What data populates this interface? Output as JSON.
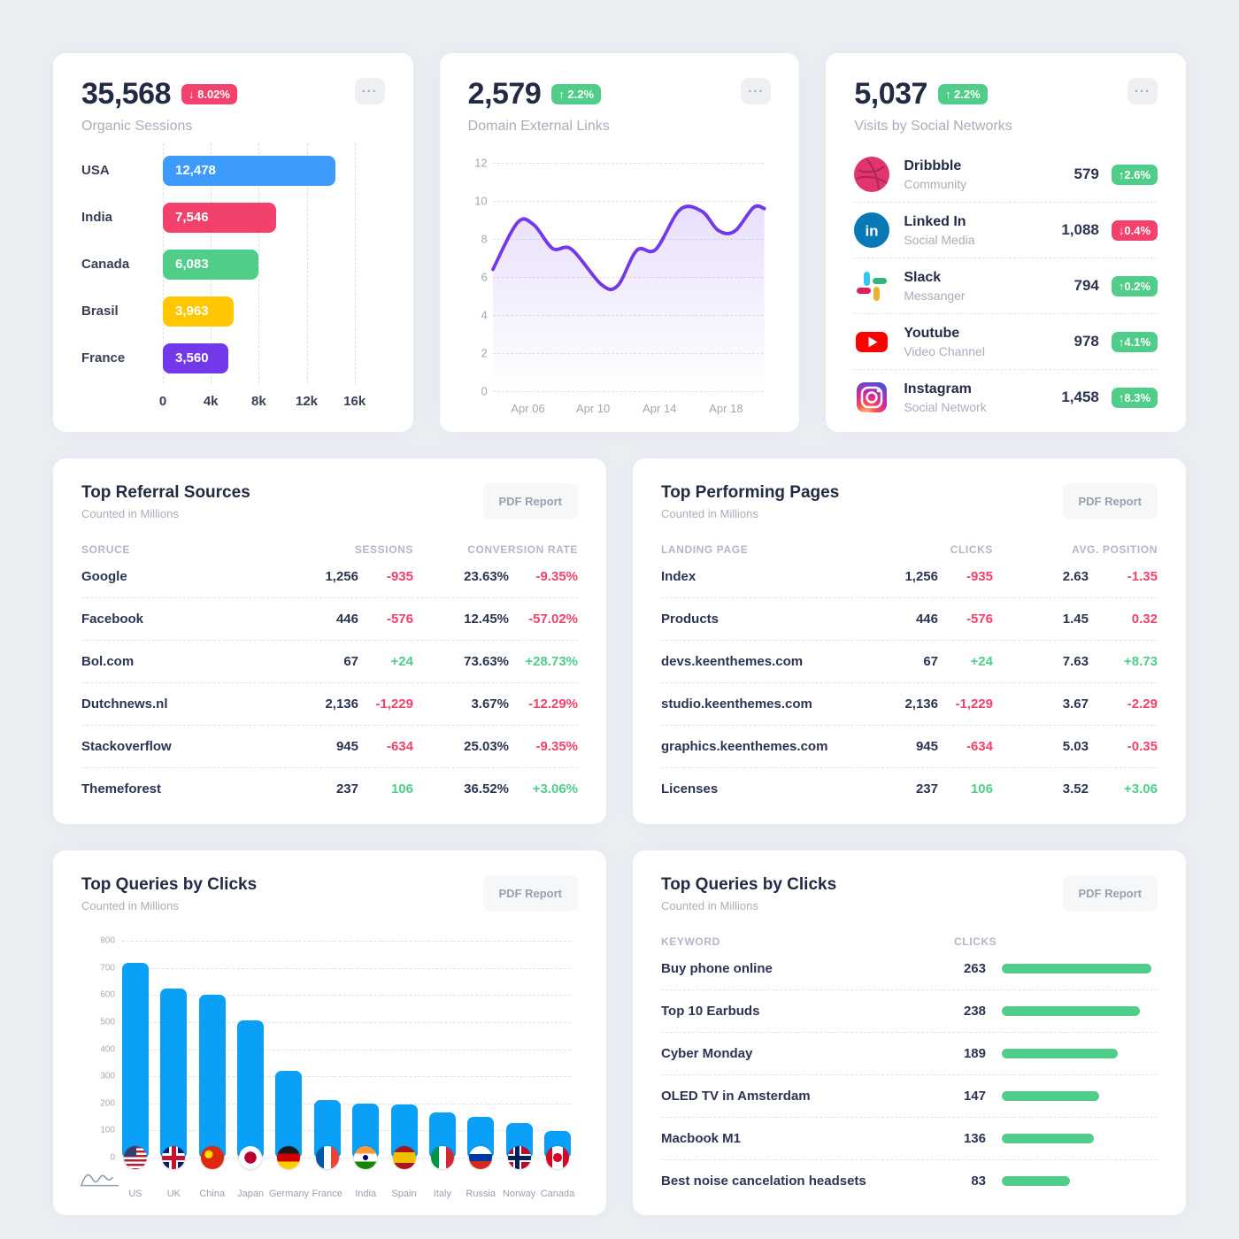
{
  "page": {
    "background": "#ebeef3",
    "card_background": "#ffffff"
  },
  "colors": {
    "danger": "#f1416c",
    "success": "#50cd89",
    "chart_blue": "#0ba0f8",
    "purple": "#7239ea"
  },
  "cards": {
    "organic_sessions": {
      "value": "35,568",
      "badge": {
        "arrow": "↓",
        "text": "8.02%",
        "tone": "danger"
      },
      "subtitle": "Organic Sessions",
      "chart_data": {
        "type": "bar",
        "orientation": "horizontal",
        "categories": [
          "USA",
          "India",
          "Canada",
          "Brasil",
          "France"
        ],
        "values": [
          12478,
          7546,
          6083,
          3963,
          3560
        ],
        "value_labels": [
          "12,478",
          "7,546",
          "6,083",
          "3,963",
          "3,560"
        ],
        "bar_colors": [
          "#3d9bfc",
          "#f1416c",
          "#50cd89",
          "#ffc700",
          "#7239ea"
        ],
        "x_ticks": [
          "0",
          "4k",
          "8k",
          "12k",
          "16k"
        ],
        "xlim": [
          0,
          16000
        ],
        "grid": true
      }
    },
    "domain_external_links": {
      "value": "2,579",
      "badge": {
        "arrow": "↑",
        "text": "2.2%",
        "tone": "success"
      },
      "subtitle": "Domain External Links",
      "chart_data": {
        "type": "area",
        "line_color": "#7239ea",
        "ylim": [
          0,
          12
        ],
        "y_ticks": [
          "12",
          "10",
          "8",
          "6",
          "4",
          "2",
          "0"
        ],
        "x_ticks": [
          {
            "label": "Apr 06",
            "pos": 13
          },
          {
            "label": "Apr 10",
            "pos": 37
          },
          {
            "label": "Apr 14",
            "pos": 61.5
          },
          {
            "label": "Apr 18",
            "pos": 86
          }
        ],
        "points": [
          [
            0,
            6.4
          ],
          [
            9,
            8.85
          ],
          [
            15,
            8.75
          ],
          [
            22,
            7.5
          ],
          [
            29,
            7.45
          ],
          [
            40,
            5.6
          ],
          [
            46,
            5.55
          ],
          [
            53,
            7.4
          ],
          [
            60,
            7.45
          ],
          [
            69,
            9.55
          ],
          [
            77,
            9.45
          ],
          [
            83,
            8.45
          ],
          [
            89,
            8.4
          ],
          [
            96,
            9.65
          ],
          [
            100,
            9.6
          ]
        ],
        "grid": true
      }
    },
    "social_visits": {
      "value": "5,037",
      "badge": {
        "arrow": "↑",
        "text": "2.2%",
        "tone": "success"
      },
      "subtitle": "Visits by Social Networks",
      "rows": [
        {
          "icon": "dribbble",
          "name": "Dribbble",
          "desc": "Community",
          "value": "579",
          "delta": {
            "arrow": "↑",
            "text": "2.6%",
            "tone": "success"
          }
        },
        {
          "icon": "linkedin",
          "name": "Linked In",
          "desc": "Social Media",
          "value": "1,088",
          "delta": {
            "arrow": "↓",
            "text": "0.4%",
            "tone": "danger"
          }
        },
        {
          "icon": "slack",
          "name": "Slack",
          "desc": "Messanger",
          "value": "794",
          "delta": {
            "arrow": "↑",
            "text": "0.2%",
            "tone": "success"
          }
        },
        {
          "icon": "youtube",
          "name": "Youtube",
          "desc": "Video Channel",
          "value": "978",
          "delta": {
            "arrow": "↑",
            "text": "4.1%",
            "tone": "success"
          }
        },
        {
          "icon": "instagram",
          "name": "Instagram",
          "desc": "Social Network",
          "value": "1,458",
          "delta": {
            "arrow": "↑",
            "text": "8.3%",
            "tone": "success"
          }
        }
      ]
    },
    "top_referral_sources": {
      "title": "Top Referral Sources",
      "subtitle": "Counted in Millions",
      "action": "PDF Report",
      "columns": [
        "SORUCE",
        "SESSIONS",
        "CONVERSION RATE"
      ],
      "rows": [
        {
          "label": "Google",
          "v1": "1,256",
          "d1": "-935",
          "d1_tone": "danger",
          "v2": "23.63%",
          "d2": "-9.35%",
          "d2_tone": "danger"
        },
        {
          "label": "Facebook",
          "v1": "446",
          "d1": "-576",
          "d1_tone": "danger",
          "v2": "12.45%",
          "d2": "-57.02%",
          "d2_tone": "danger"
        },
        {
          "label": "Bol.com",
          "v1": "67",
          "d1": "+24",
          "d1_tone": "success",
          "v2": "73.63%",
          "d2": "+28.73%",
          "d2_tone": "success"
        },
        {
          "label": "Dutchnews.nl",
          "v1": "2,136",
          "d1": "-1,229",
          "d1_tone": "danger",
          "v2": "3.67%",
          "d2": "-12.29%",
          "d2_tone": "danger"
        },
        {
          "label": "Stackoverflow",
          "v1": "945",
          "d1": "-634",
          "d1_tone": "danger",
          "v2": "25.03%",
          "d2": "-9.35%",
          "d2_tone": "danger"
        },
        {
          "label": "Themeforest",
          "v1": "237",
          "d1": "106",
          "d1_tone": "success",
          "v2": "36.52%",
          "d2": "+3.06%",
          "d2_tone": "success"
        }
      ]
    },
    "top_performing_pages": {
      "title": "Top Performing Pages",
      "subtitle": "Counted in Millions",
      "action": "PDF Report",
      "columns": [
        "LANDING PAGE",
        "CLICKS",
        "AVG. POSITION"
      ],
      "rows": [
        {
          "label": "Index",
          "v1": "1,256",
          "d1": "-935",
          "d1_tone": "danger",
          "v2": "2.63",
          "d2": "-1.35",
          "d2_tone": "danger"
        },
        {
          "label": "Products",
          "v1": "446",
          "d1": "-576",
          "d1_tone": "danger",
          "v2": "1.45",
          "d2": "0.32",
          "d2_tone": "danger"
        },
        {
          "label": "devs.keenthemes.com",
          "v1": "67",
          "d1": "+24",
          "d1_tone": "success",
          "v2": "7.63",
          "d2": "+8.73",
          "d2_tone": "success"
        },
        {
          "label": "studio.keenthemes.com",
          "v1": "2,136",
          "d1": "-1,229",
          "d1_tone": "danger",
          "v2": "3.67",
          "d2": "-2.29",
          "d2_tone": "danger"
        },
        {
          "label": "graphics.keenthemes.com",
          "v1": "945",
          "d1": "-634",
          "d1_tone": "danger",
          "v2": "5.03",
          "d2": "-0.35",
          "d2_tone": "danger"
        },
        {
          "label": "Licenses",
          "v1": "237",
          "d1": "106",
          "d1_tone": "success",
          "v2": "3.52",
          "d2": "+3.06",
          "d2_tone": "success"
        }
      ]
    },
    "top_queries_chart": {
      "title": "Top Queries by Clicks",
      "subtitle": "Counted in Millions",
      "action": "PDF Report",
      "chart_data": {
        "type": "bar",
        "orientation": "vertical",
        "categories": [
          "US",
          "UK",
          "China",
          "Japan",
          "Germany",
          "France",
          "India",
          "Spain",
          "Italy",
          "Russia",
          "Norway",
          "Canada"
        ],
        "flags": [
          "us",
          "uk",
          "cn",
          "jp",
          "de",
          "fr",
          "in",
          "es",
          "it",
          "ru",
          "no",
          "ca"
        ],
        "values": [
          720,
          625,
          600,
          505,
          320,
          212,
          200,
          196,
          165,
          150,
          128,
          98
        ],
        "bar_color": "#0ba0f8",
        "ylim": [
          0,
          800
        ],
        "y_ticks": [
          "800",
          "700",
          "600",
          "500",
          "400",
          "300",
          "200",
          "100",
          "0"
        ],
        "grid": true
      }
    },
    "top_queries_table": {
      "title": "Top Queries by Clicks",
      "subtitle": "Counted in Millions",
      "action": "PDF Report",
      "columns": [
        "KEYWORD",
        "CLICKS"
      ],
      "bar_color": "#50cd89",
      "chart_data": {
        "type": "bar",
        "orientation": "horizontal",
        "categories": [
          "Buy phone online",
          "Top 10 Earbuds",
          "Cyber Monday",
          "OLED TV in Amsterdam",
          "Macbook M1",
          "Best noise cancelation headsets"
        ],
        "values": [
          263,
          238,
          189,
          147,
          136,
          83
        ]
      },
      "rows": [
        {
          "label": "Buy phone online",
          "value": 263
        },
        {
          "label": "Top 10 Earbuds",
          "value": 238
        },
        {
          "label": "Cyber Monday",
          "value": 189
        },
        {
          "label": "OLED TV in Amsterdam",
          "value": 147
        },
        {
          "label": "Macbook M1",
          "value": 136
        },
        {
          "label": "Best noise cancelation headsets",
          "value": 83
        }
      ]
    }
  }
}
